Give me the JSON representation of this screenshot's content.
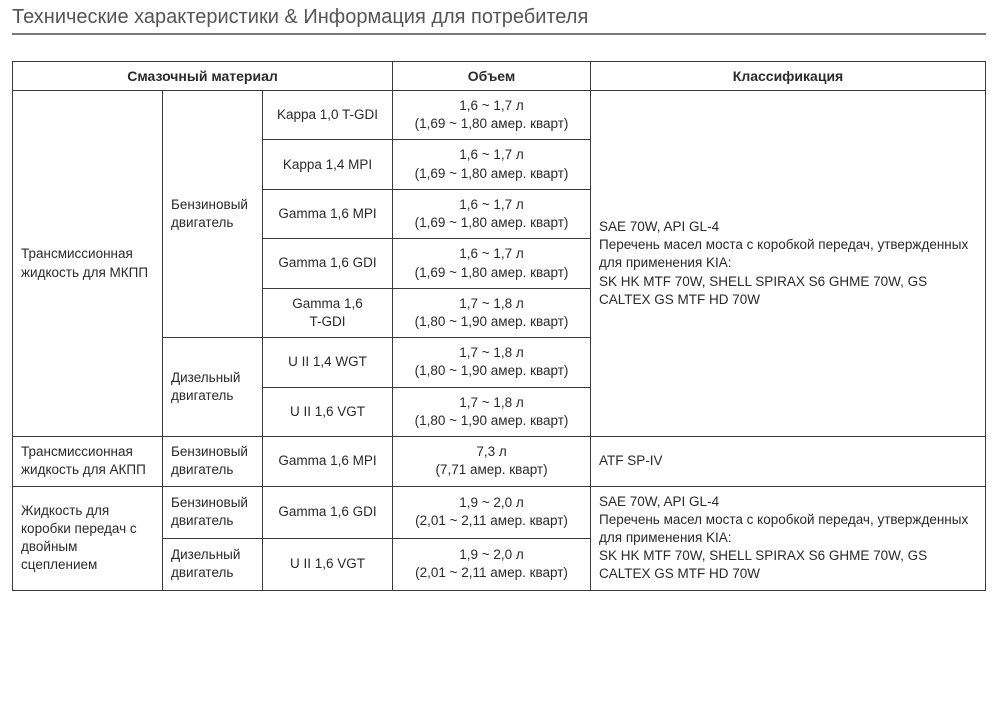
{
  "title": "Технические характеристики & Информация для потребителя",
  "headers": {
    "lubricant": "Смазочный материал",
    "volume": "Объем",
    "classification": "Классификация"
  },
  "groups": {
    "mt": "Трансмиссионная жидкость для МКПП",
    "at": "Трансмиссионная жидкость для АКПП",
    "dct": "Жидкость для коробки передач с двойным сцеплением"
  },
  "engine_types": {
    "petrol": "Бензиновый двигатель",
    "diesel": "Дизельный двигатель"
  },
  "variants": {
    "kappa10tgdi": "Kappa 1,0 T-GDI",
    "kappa14mpi": "Kappa 1,4 MPI",
    "gamma16mpi": "Gamma 1,6 MPI",
    "gamma16gdi": "Gamma 1,6 GDI",
    "gamma16tgdi_l1": "Gamma 1,6",
    "gamma16tgdi_l2": "T-GDI",
    "uii14wgt": "U II 1,4 WGT",
    "uii16vgt": "U II 1,6 VGT"
  },
  "volumes": {
    "v16_17_l1": "1,6 ~ 1,7 л",
    "v16_17_l2": "(1,69 ~ 1,80 амер. кварт)",
    "v17_18_l1": "1,7 ~ 1,8 л",
    "v17_18_l2": "(1,80 ~ 1,90 амер. кварт)",
    "v73_l1": "7,3 л",
    "v73_l2": "(7,71 амер. кварт)",
    "v19_20_l1": "1,9 ~ 2,0 л",
    "v19_20_l2": "(2,01 ~ 2,11 амер. кварт)"
  },
  "classifications": {
    "mt_l1": "SAE 70W, API GL-4",
    "mt_l2": "Перечень масел моста с коробкой передач, утвержденных для применения KIA:",
    "mt_l3": "SK HK MTF 70W, SHELL SPIRAX S6 GHME 70W, GS CALTEX GS MTF HD 70W",
    "at": "ATF SP-IV",
    "dct_l1": "SAE 70W, API GL-4",
    "dct_l2": "Перечень масел моста с коробкой передач, утвержденных для применения KIA:",
    "dct_l3": "SK HK MTF 70W, SHELL SPIRAX S6 GHME 70W, GS CALTEX GS MTF HD 70W"
  }
}
